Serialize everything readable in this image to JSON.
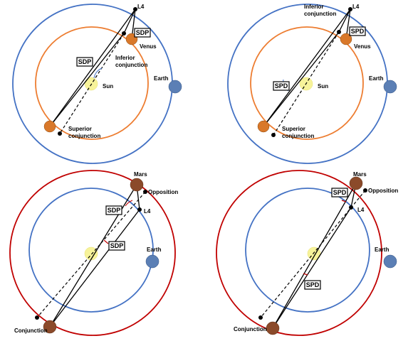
{
  "panels": [
    {
      "l4": "L4",
      "planet": "Venus",
      "box_near": "SDP",
      "box_far": "SDP",
      "near_conj": [
        "Inferior",
        "conjunction"
      ],
      "sun": "Sun",
      "earth": "Earth",
      "far_conj": [
        "Superior",
        "conjunction"
      ]
    },
    {
      "l4": "L4",
      "planet": "Venus",
      "box_near": "SPD",
      "box_far": "SPD",
      "near_conj": [
        "Inferior",
        "conjunction"
      ],
      "sun": "Sun",
      "earth": "Earth",
      "far_conj": [
        "Superior",
        "conjunction"
      ]
    },
    {
      "l4": "L4",
      "planet": "Mars",
      "box_near": "SDP",
      "box_far": "SDP",
      "opposition": "Opposition",
      "earth": "Earth",
      "conj": "Conjunction"
    },
    {
      "l4": "L4",
      "planet": "Mars",
      "box_near": "SPD",
      "box_far": "SPD",
      "opposition": "Opposition",
      "earth": "Earth",
      "conj": "Conjunction"
    }
  ]
}
